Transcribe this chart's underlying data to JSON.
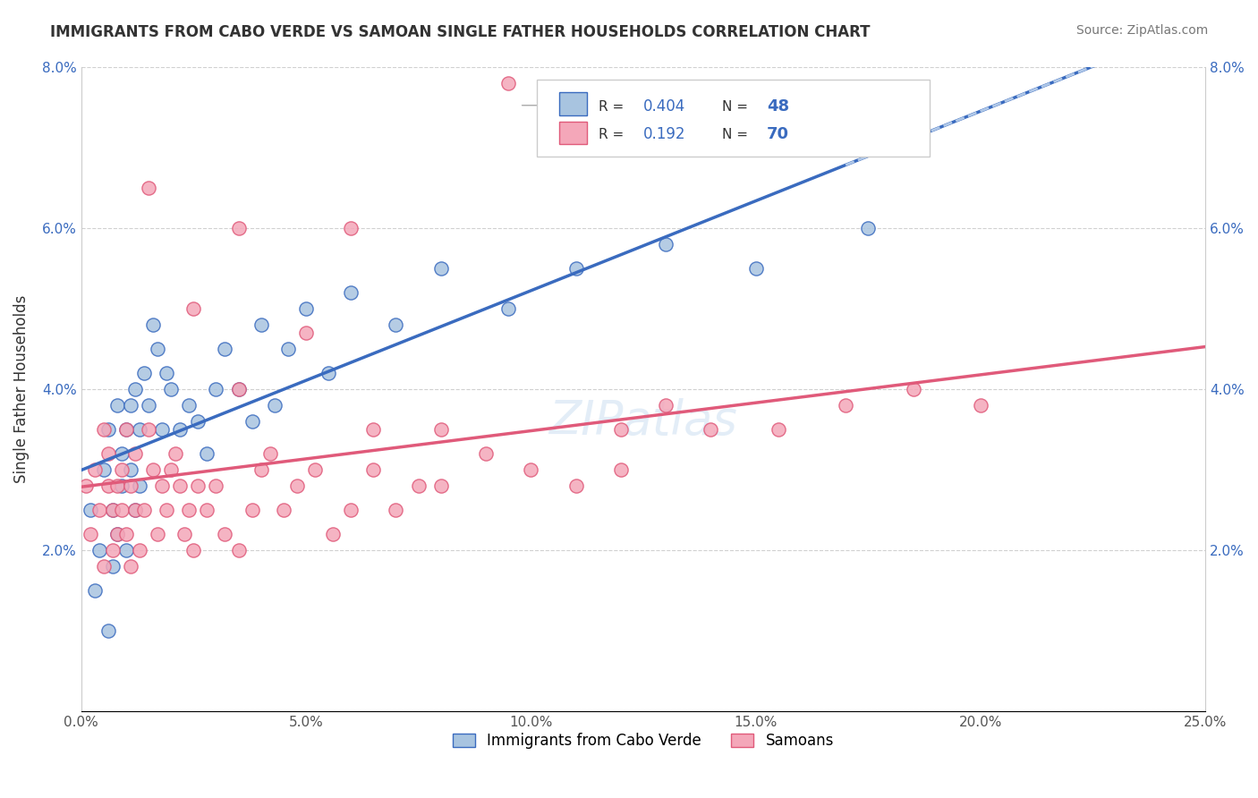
{
  "title": "IMMIGRANTS FROM CABO VERDE VS SAMOAN SINGLE FATHER HOUSEHOLDS CORRELATION CHART",
  "source": "Source: ZipAtlas.com",
  "xlabel_bottom": "",
  "ylabel": "Single Father Households",
  "legend_label1": "Immigrants from Cabo Verde",
  "legend_label2": "Samoans",
  "r1": "0.404",
  "n1": "48",
  "r2": "0.192",
  "n2": "70",
  "xlim": [
    0.0,
    0.25
  ],
  "ylim": [
    0.0,
    0.08
  ],
  "xticks": [
    0.0,
    0.05,
    0.1,
    0.15,
    0.2,
    0.25
  ],
  "yticks": [
    0.0,
    0.02,
    0.04,
    0.06,
    0.08
  ],
  "xtick_labels": [
    "0.0%",
    "5.0%",
    "10.0%",
    "15.0%",
    "20.0%",
    "25.0%"
  ],
  "ytick_labels": [
    "",
    "2.0%",
    "4.0%",
    "6.0%",
    "8.0%"
  ],
  "color_blue": "#a8c4e0",
  "color_pink": "#f4a7b9",
  "line_blue": "#3a6bbf",
  "line_pink": "#e05a7a",
  "line_dash": "#b0c8e8",
  "background": "#ffffff",
  "grid_color": "#d0d0d0",
  "cabo_verde_x": [
    0.002,
    0.003,
    0.004,
    0.005,
    0.006,
    0.006,
    0.007,
    0.007,
    0.008,
    0.008,
    0.009,
    0.009,
    0.01,
    0.01,
    0.011,
    0.011,
    0.012,
    0.012,
    0.013,
    0.013,
    0.014,
    0.015,
    0.016,
    0.017,
    0.018,
    0.019,
    0.02,
    0.022,
    0.024,
    0.026,
    0.028,
    0.03,
    0.032,
    0.035,
    0.038,
    0.04,
    0.043,
    0.046,
    0.05,
    0.055,
    0.06,
    0.07,
    0.08,
    0.095,
    0.11,
    0.13,
    0.15,
    0.175
  ],
  "cabo_verde_y": [
    0.025,
    0.015,
    0.02,
    0.03,
    0.035,
    0.01,
    0.025,
    0.018,
    0.038,
    0.022,
    0.032,
    0.028,
    0.035,
    0.02,
    0.038,
    0.03,
    0.04,
    0.025,
    0.035,
    0.028,
    0.042,
    0.038,
    0.048,
    0.045,
    0.035,
    0.042,
    0.04,
    0.035,
    0.038,
    0.036,
    0.032,
    0.04,
    0.045,
    0.04,
    0.036,
    0.048,
    0.038,
    0.045,
    0.05,
    0.042,
    0.052,
    0.048,
    0.055,
    0.05,
    0.055,
    0.058,
    0.055,
    0.06
  ],
  "samoan_x": [
    0.001,
    0.002,
    0.003,
    0.004,
    0.005,
    0.005,
    0.006,
    0.006,
    0.007,
    0.007,
    0.008,
    0.008,
    0.009,
    0.009,
    0.01,
    0.01,
    0.011,
    0.011,
    0.012,
    0.012,
    0.013,
    0.014,
    0.015,
    0.016,
    0.017,
    0.018,
    0.019,
    0.02,
    0.021,
    0.022,
    0.023,
    0.024,
    0.025,
    0.026,
    0.028,
    0.03,
    0.032,
    0.035,
    0.038,
    0.04,
    0.042,
    0.045,
    0.048,
    0.052,
    0.056,
    0.06,
    0.065,
    0.07,
    0.075,
    0.08,
    0.09,
    0.1,
    0.11,
    0.12,
    0.13,
    0.14,
    0.155,
    0.17,
    0.185,
    0.2,
    0.015,
    0.025,
    0.035,
    0.05,
    0.065,
    0.08,
    0.095,
    0.035,
    0.06,
    0.12
  ],
  "samoan_y": [
    0.028,
    0.022,
    0.03,
    0.025,
    0.035,
    0.018,
    0.032,
    0.028,
    0.025,
    0.02,
    0.022,
    0.028,
    0.03,
    0.025,
    0.022,
    0.035,
    0.028,
    0.018,
    0.025,
    0.032,
    0.02,
    0.025,
    0.035,
    0.03,
    0.022,
    0.028,
    0.025,
    0.03,
    0.032,
    0.028,
    0.022,
    0.025,
    0.02,
    0.028,
    0.025,
    0.028,
    0.022,
    0.02,
    0.025,
    0.03,
    0.032,
    0.025,
    0.028,
    0.03,
    0.022,
    0.025,
    0.03,
    0.025,
    0.028,
    0.035,
    0.032,
    0.03,
    0.028,
    0.035,
    0.038,
    0.035,
    0.035,
    0.038,
    0.04,
    0.038,
    0.065,
    0.05,
    0.04,
    0.047,
    0.035,
    0.028,
    0.078,
    0.06,
    0.06,
    0.03
  ]
}
